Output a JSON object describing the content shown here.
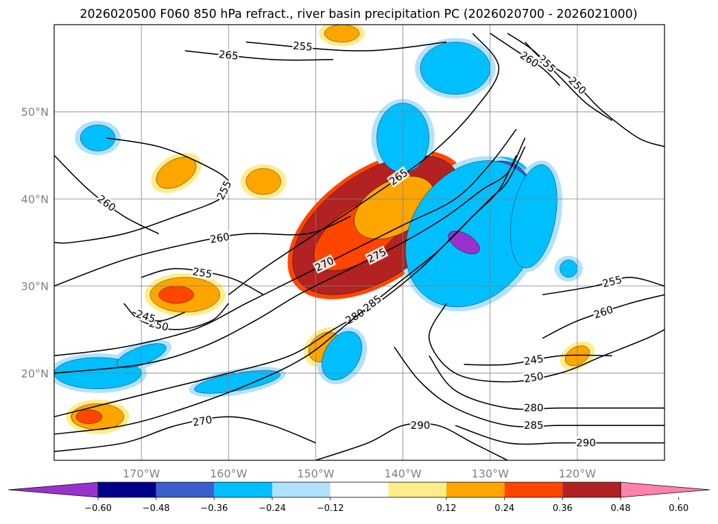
{
  "chart_data": {
    "type": "heatmap",
    "title": "2026020500 F060 850 hPa refract., river basin precipitation PC (2026020700 - 2026021000)",
    "projection": "latitude-longitude map, North Pacific",
    "xlim": [
      -180,
      -110
    ],
    "ylim": [
      10,
      60
    ],
    "x_ticks": [
      {
        "value": -170,
        "label": "170°W"
      },
      {
        "value": -160,
        "label": "160°W"
      },
      {
        "value": -150,
        "label": "150°W"
      },
      {
        "value": -140,
        "label": "140°W"
      },
      {
        "value": -130,
        "label": "130°W"
      },
      {
        "value": -120,
        "label": "120°W"
      }
    ],
    "y_ticks": [
      {
        "value": 20,
        "label": "20°N"
      },
      {
        "value": 30,
        "label": "30°N"
      },
      {
        "value": 40,
        "label": "40°N"
      },
      {
        "value": 50,
        "label": "50°N"
      }
    ],
    "grid": true,
    "colorbar": {
      "orientation": "horizontal",
      "extend": "both",
      "ticks": [
        "−0.60",
        "−0.48",
        "−0.36",
        "−0.24",
        "−0.12",
        "0.12",
        "0.24",
        "0.36",
        "0.48",
        "0.60"
      ],
      "colors": [
        "#9932cc",
        "#00008b",
        "#3a5fcd",
        "#00bfff",
        "#b0e2ff",
        "#ffffff",
        "#ffec8b",
        "#ffa500",
        "#ff4500",
        "#b22222",
        "#ff82ab"
      ]
    },
    "shaded_regions": [
      {
        "level": 0.48,
        "lon": -143,
        "lat": 37,
        "rlon": 11,
        "rlat": 6,
        "rot": -35
      },
      {
        "level": 0.36,
        "lon": -145,
        "lat": 36,
        "rlon": 6,
        "rlat": 3,
        "rot": -35
      },
      {
        "level": 0.24,
        "lon": -141,
        "lat": 39,
        "rlon": 5,
        "rlat": 3,
        "rot": -30
      },
      {
        "level": 0.24,
        "lon": -165,
        "lat": 29,
        "rlon": 4,
        "rlat": 2,
        "rot": 0
      },
      {
        "level": 0.36,
        "lon": -166,
        "lat": 29,
        "rlon": 2,
        "rlat": 1,
        "rot": 0
      },
      {
        "level": 0.24,
        "lon": -175,
        "lat": 15,
        "rlon": 3,
        "rlat": 1.5,
        "rot": 0
      },
      {
        "level": 0.36,
        "lon": -176,
        "lat": 15,
        "rlon": 1.5,
        "rlat": 0.8,
        "rot": 0
      },
      {
        "level": 0.24,
        "lon": -149,
        "lat": 23,
        "rlon": 2,
        "rlat": 1.5,
        "rot": -40
      },
      {
        "level": 0.24,
        "lon": -166,
        "lat": 43,
        "rlon": 2.5,
        "rlat": 1.5,
        "rot": -30
      },
      {
        "level": 0.24,
        "lon": -156,
        "lat": 42,
        "rlon": 2,
        "rlat": 1.5,
        "rot": 0
      },
      {
        "level": 0.24,
        "lon": -147,
        "lat": 59,
        "rlon": 2,
        "rlat": 1,
        "rot": 0
      },
      {
        "level": 0.24,
        "lon": -120,
        "lat": 22,
        "rlon": 1.5,
        "rlat": 1,
        "rot": -30
      },
      {
        "level": -0.48,
        "lon": -130,
        "lat": 36,
        "rlon": 3,
        "rlat": 7,
        "rot": 25
      },
      {
        "level": -0.36,
        "lon": -131,
        "lat": 37,
        "rlon": 5,
        "rlat": 8,
        "rot": 30
      },
      {
        "level": -0.24,
        "lon": -132,
        "lat": 36,
        "rlon": 7,
        "rlat": 9,
        "rot": 35
      },
      {
        "level": -0.6,
        "lon": -133,
        "lat": 35,
        "rlon": 2,
        "rlat": 1,
        "rot": 30
      },
      {
        "level": -0.48,
        "lon": -125,
        "lat": 38,
        "rlon": 1.5,
        "rlat": 3.5,
        "rot": 10
      },
      {
        "level": -0.24,
        "lon": -125,
        "lat": 38,
        "rlon": 2.5,
        "rlat": 6,
        "rot": 10
      },
      {
        "level": -0.36,
        "lon": -134,
        "lat": 55,
        "rlon": 2.5,
        "rlat": 2,
        "rot": 0
      },
      {
        "level": -0.24,
        "lon": -134,
        "lat": 55,
        "rlon": 4,
        "rlat": 3,
        "rot": 0
      },
      {
        "level": -0.24,
        "lon": -140,
        "lat": 47,
        "rlon": 3,
        "rlat": 4,
        "rot": 0
      },
      {
        "level": -0.24,
        "lon": -147,
        "lat": 22,
        "rlon": 2,
        "rlat": 3,
        "rot": 30
      },
      {
        "level": -0.24,
        "lon": -159,
        "lat": 19,
        "rlon": 5,
        "rlat": 1,
        "rot": -10
      },
      {
        "level": -0.36,
        "lon": -175,
        "lat": 20,
        "rlon": 3,
        "rlat": 1.2,
        "rot": 0
      },
      {
        "level": -0.24,
        "lon": -175,
        "lat": 20,
        "rlon": 5,
        "rlat": 1.8,
        "rot": 0
      },
      {
        "level": -0.24,
        "lon": -175,
        "lat": 47,
        "rlon": 2,
        "rlat": 1.5,
        "rot": 0
      },
      {
        "level": -0.24,
        "lon": -170,
        "lat": 22,
        "rlon": 3,
        "rlat": 1,
        "rot": -20
      },
      {
        "level": -0.24,
        "lon": -121,
        "lat": 32,
        "rlon": 1,
        "rlat": 1,
        "rot": 0
      }
    ],
    "contours": [
      {
        "label": "250",
        "points": [
          [
            -126,
            58
          ],
          [
            -124,
            56
          ],
          [
            -121,
            54
          ],
          [
            -119,
            52
          ],
          [
            -117,
            50
          ],
          [
            -113,
            47
          ],
          [
            -110,
            46
          ]
        ]
      },
      {
        "label": "255",
        "points": [
          [
            -128,
            59
          ],
          [
            -125,
            57
          ],
          [
            -122,
            54
          ],
          [
            -119,
            51
          ],
          [
            -116,
            49
          ]
        ]
      },
      {
        "label": "260",
        "points": [
          [
            -130,
            59
          ],
          [
            -127,
            57
          ],
          [
            -124,
            55
          ],
          [
            -122,
            53
          ]
        ]
      },
      {
        "label": "275",
        "points": [
          [
            -126,
            47
          ],
          [
            -128,
            43
          ],
          [
            -131,
            41
          ],
          [
            -135,
            38
          ],
          [
            -140,
            35
          ],
          [
            -146,
            32
          ],
          [
            -152,
            29
          ],
          [
            -157,
            26
          ],
          [
            -163,
            23
          ],
          [
            -170,
            21
          ],
          [
            -180,
            20
          ]
        ]
      },
      {
        "label": "270",
        "points": [
          [
            -127,
            48
          ],
          [
            -130,
            44
          ],
          [
            -134,
            40
          ],
          [
            -140,
            37
          ],
          [
            -146,
            34
          ],
          [
            -152,
            31
          ],
          [
            -158,
            28
          ],
          [
            -164,
            25
          ],
          [
            -172,
            23
          ],
          [
            -180,
            22
          ]
        ]
      },
      {
        "label": "265",
        "points": [
          [
            -132,
            59
          ],
          [
            -129,
            55
          ],
          [
            -132,
            50
          ],
          [
            -137,
            45
          ],
          [
            -144,
            40
          ],
          [
            -150,
            36
          ],
          [
            -156,
            32
          ],
          [
            -160,
            29
          ]
        ]
      },
      {
        "label": "280",
        "points": [
          [
            -126,
            46
          ],
          [
            -128,
            42
          ],
          [
            -130,
            40
          ],
          [
            -134,
            36
          ],
          [
            -138,
            32
          ],
          [
            -143,
            28
          ],
          [
            -148,
            25
          ],
          [
            -153,
            22
          ],
          [
            -160,
            20
          ],
          [
            -168,
            18
          ],
          [
            -176,
            16
          ],
          [
            -180,
            15
          ]
        ]
      },
      {
        "label": "285",
        "points": [
          [
            -127,
            45
          ],
          [
            -129,
            41
          ],
          [
            -132,
            38
          ],
          [
            -136,
            34
          ],
          [
            -141,
            30
          ],
          [
            -146,
            26
          ],
          [
            -151,
            22
          ],
          [
            -157,
            19
          ],
          [
            -165,
            16
          ],
          [
            -172,
            14
          ],
          [
            -180,
            13
          ]
        ]
      },
      {
        "label": "250",
        "points": [
          [
            -135,
            28
          ],
          [
            -137,
            24
          ],
          [
            -134,
            20
          ],
          [
            -128,
            19
          ],
          [
            -122,
            20
          ],
          [
            -117,
            22
          ],
          [
            -112,
            24
          ],
          [
            -110,
            25
          ]
        ]
      },
      {
        "label": "245",
        "points": [
          [
            -133,
            21
          ],
          [
            -128,
            21
          ],
          [
            -122,
            22
          ],
          [
            -116,
            22
          ]
        ]
      },
      {
        "label": "285",
        "points": [
          [
            -110,
            14
          ],
          [
            -116,
            14
          ],
          [
            -122,
            14
          ],
          [
            -128,
            14
          ],
          [
            -134,
            16
          ],
          [
            -138,
            19
          ],
          [
            -141,
            23
          ]
        ]
      },
      {
        "label": "280",
        "points": [
          [
            -110,
            16
          ],
          [
            -116,
            16
          ],
          [
            -122,
            16
          ],
          [
            -128,
            16
          ],
          [
            -134,
            18
          ],
          [
            -137,
            22
          ]
        ]
      },
      {
        "label": "290",
        "points": [
          [
            -110,
            12
          ],
          [
            -116,
            12
          ],
          [
            -122,
            12
          ],
          [
            -128,
            12
          ],
          [
            -134,
            14
          ]
        ]
      },
      {
        "label": "255",
        "points": [
          [
            -174,
            47
          ],
          [
            -168,
            46
          ],
          [
            -163,
            44
          ],
          [
            -160,
            42
          ],
          [
            -161,
            40
          ],
          [
            -166,
            38
          ],
          [
            -172,
            36
          ],
          [
            -178,
            35
          ],
          [
            -180,
            35
          ]
        ]
      },
      {
        "label": "260",
        "points": [
          [
            -180,
            30
          ],
          [
            -172,
            33
          ],
          [
            -164,
            35
          ],
          [
            -158,
            36
          ],
          [
            -151,
            36
          ],
          [
            -146,
            38
          ]
        ]
      },
      {
        "label": "255",
        "points": [
          [
            -170,
            31
          ],
          [
            -166,
            32
          ],
          [
            -160,
            31
          ],
          [
            -156,
            29
          ]
        ]
      },
      {
        "label": "250",
        "points": [
          [
            -172,
            28
          ],
          [
            -170,
            26
          ],
          [
            -166,
            25
          ],
          [
            -162,
            26
          ],
          [
            -160,
            28
          ]
        ]
      },
      {
        "label": "245",
        "points": [
          [
            -171,
            27
          ],
          [
            -168,
            26
          ],
          [
            -165,
            27
          ]
        ]
      },
      {
        "label": "255",
        "points": [
          [
            -158,
            58
          ],
          [
            -145,
            57
          ],
          [
            -135,
            58
          ]
        ]
      },
      {
        "label": "265",
        "points": [
          [
            -165,
            57
          ],
          [
            -155,
            56
          ],
          [
            -148,
            56
          ]
        ]
      },
      {
        "label": "260",
        "points": [
          [
            -180,
            45
          ],
          [
            -176,
            41
          ],
          [
            -172,
            38
          ],
          [
            -168,
            36
          ]
        ]
      },
      {
        "label": "290",
        "points": [
          [
            -150,
            10
          ],
          [
            -144,
            12
          ],
          [
            -140,
            14
          ],
          [
            -136,
            14
          ],
          [
            -132,
            12
          ],
          [
            -128,
            10
          ]
        ]
      },
      {
        "label": "270",
        "points": [
          [
            -180,
            11
          ],
          [
            -172,
            12
          ],
          [
            -166,
            14
          ],
          [
            -160,
            15
          ],
          [
            -155,
            14
          ],
          [
            -150,
            12
          ]
        ]
      },
      {
        "label": "255",
        "points": [
          [
            -124,
            29
          ],
          [
            -118,
            30
          ],
          [
            -114,
            31
          ],
          [
            -110,
            30
          ]
        ]
      },
      {
        "label": "260",
        "points": [
          [
            -124,
            24
          ],
          [
            -120,
            26
          ],
          [
            -114,
            28
          ],
          [
            -110,
            29
          ]
        ]
      }
    ]
  }
}
